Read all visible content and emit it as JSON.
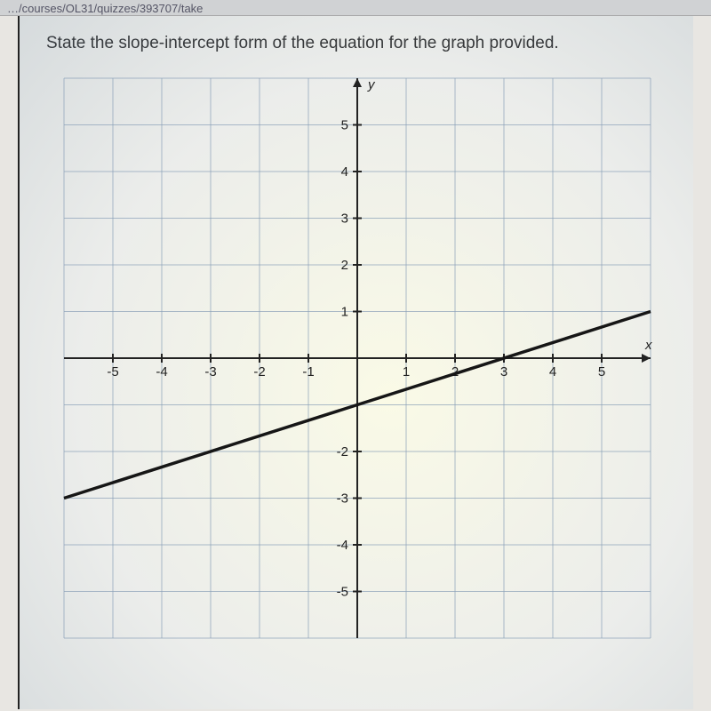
{
  "url_fragment": "…/courses/OL31/quizzes/393707/take",
  "question_text": "State the slope-intercept form of the equation for the graph provided.",
  "chart": {
    "type": "line",
    "xlim": [
      -6,
      6
    ],
    "ylim": [
      -6,
      6
    ],
    "xtick_step": 1,
    "ytick_step": 1,
    "x_tick_labels": [
      -5,
      -4,
      -3,
      -2,
      -1,
      1,
      2,
      3,
      4,
      5
    ],
    "y_tick_labels_pos": [
      1,
      2,
      3,
      4,
      5
    ],
    "y_tick_labels_neg": [
      -2,
      -3,
      -4,
      -5
    ],
    "y_axis_label": "y",
    "x_axis_label": "x",
    "grid_color": "#8aa0b8",
    "axis_color": "#222222",
    "line_color": "#161616",
    "line_width": 3.5,
    "background_color": "#f5f5f1",
    "slope": 0.3333,
    "y_intercept": -1,
    "line_points": [
      [
        -6,
        -3
      ],
      [
        6,
        1
      ]
    ]
  }
}
